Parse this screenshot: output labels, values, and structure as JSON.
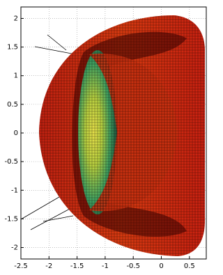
{
  "chart_data": {
    "type": "mesh",
    "xlim": [
      -2.5,
      0.8
    ],
    "ylim": [
      -2.2,
      2.2
    ],
    "xticks": [
      -2.5,
      -2,
      -1.5,
      -1,
      -0.5,
      0,
      0.5
    ],
    "yticks": [
      -2,
      -1.5,
      -1,
      -0.5,
      0,
      0.5,
      1,
      1.5,
      2
    ],
    "grid": true
  }
}
